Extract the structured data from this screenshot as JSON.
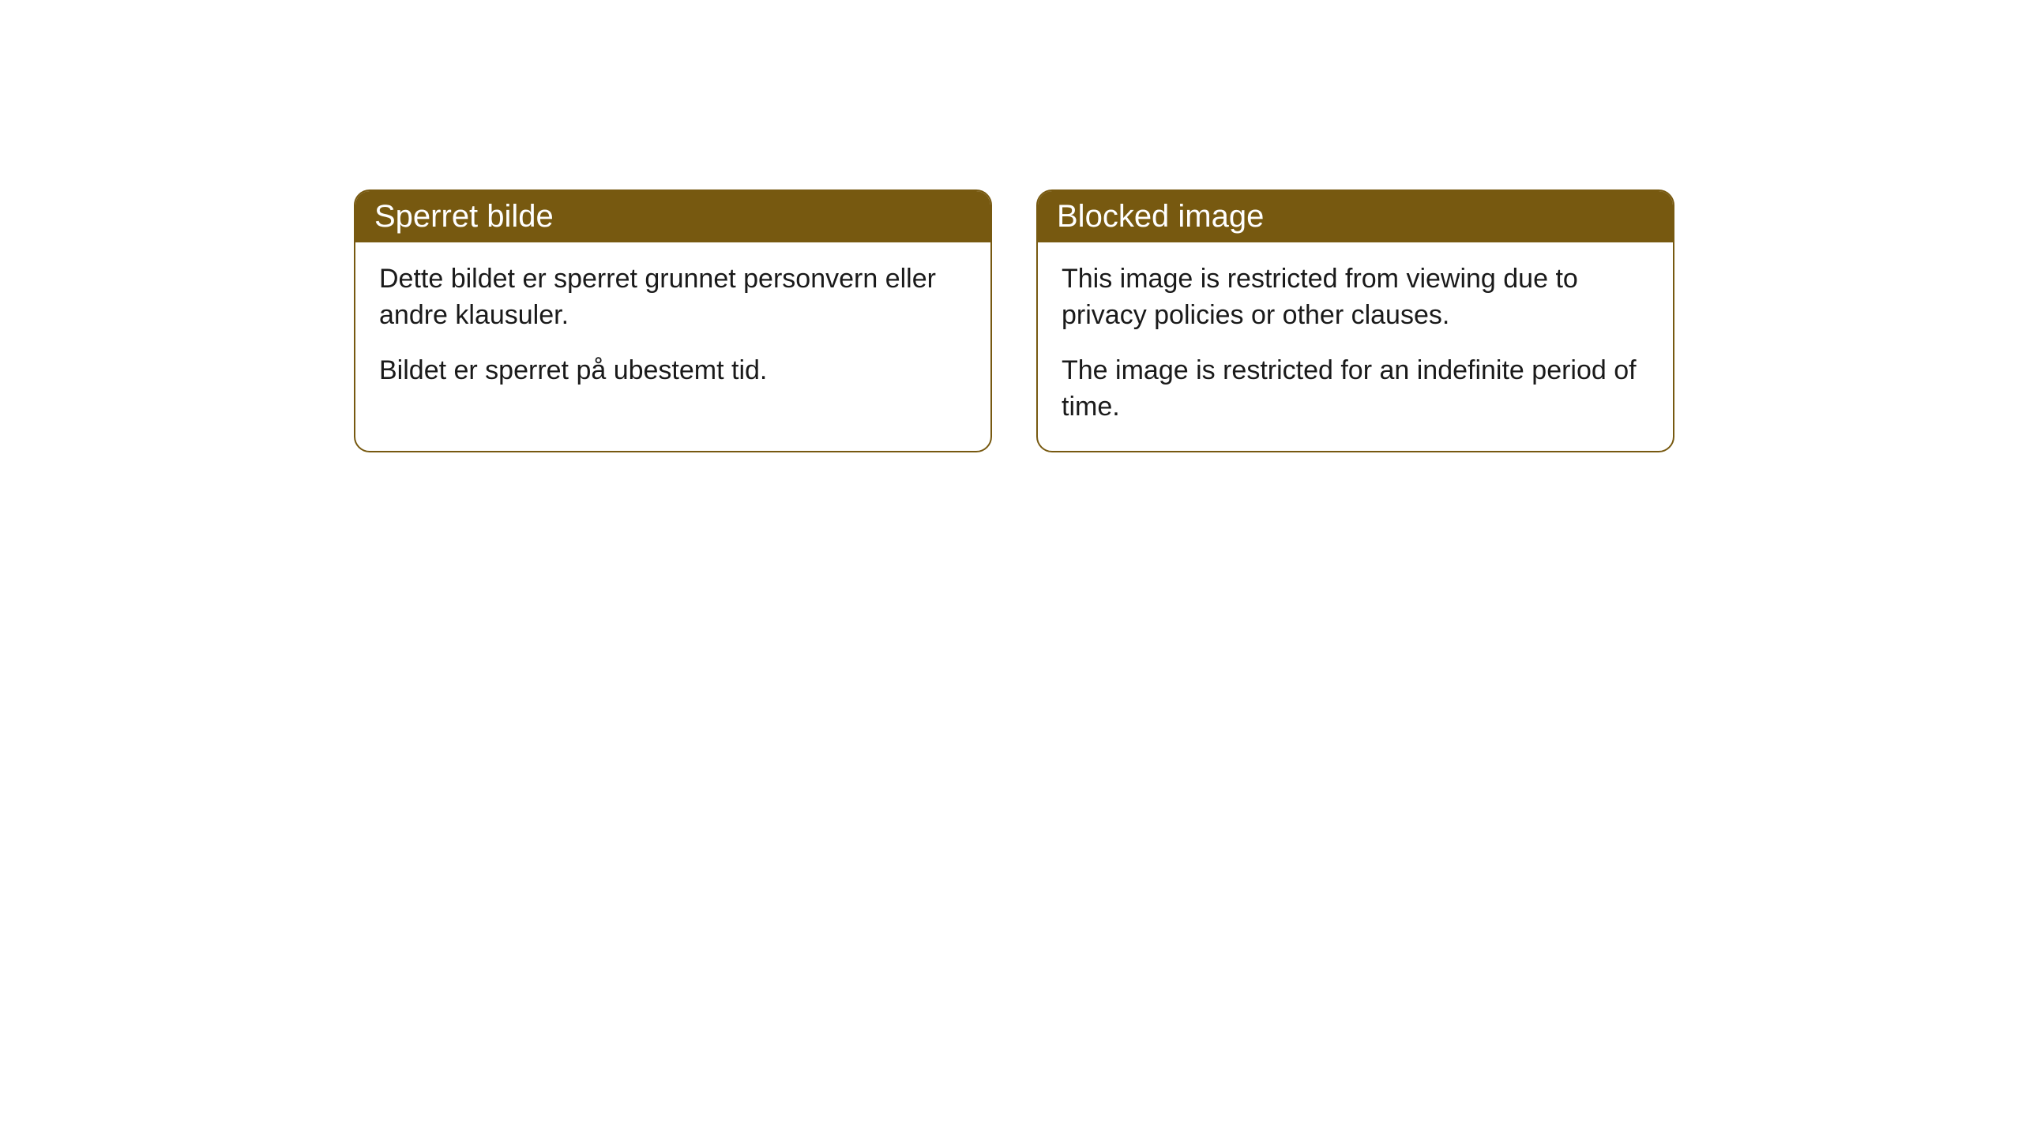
{
  "cards": [
    {
      "title": "Sperret bilde",
      "paragraph1": "Dette bildet er sperret grunnet personvern eller andre klausuler.",
      "paragraph2": "Bildet er sperret på ubestemt tid."
    },
    {
      "title": "Blocked image",
      "paragraph1": "This image is restricted from viewing due to privacy policies or other clauses.",
      "paragraph2": "The image is restricted for an indefinite period of time."
    }
  ],
  "styling": {
    "header_background_color": "#775910",
    "header_text_color": "#ffffff",
    "border_color": "#775910",
    "body_background_color": "#ffffff",
    "body_text_color": "#1a1a1a",
    "border_radius": 20,
    "header_fontsize": 40,
    "body_fontsize": 34
  }
}
